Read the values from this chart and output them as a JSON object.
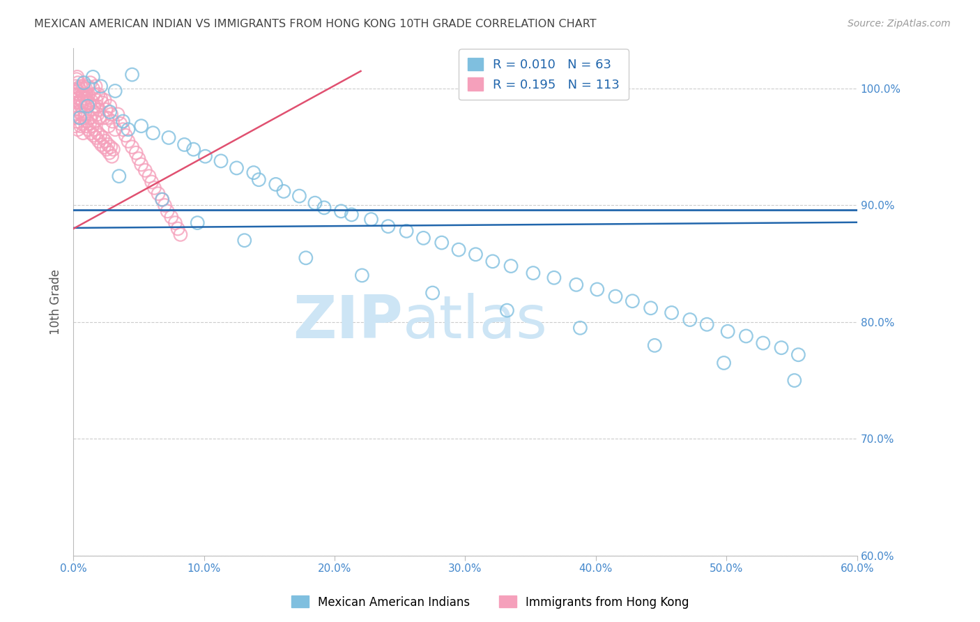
{
  "title": "MEXICAN AMERICAN INDIAN VS IMMIGRANTS FROM HONG KONG 10TH GRADE CORRELATION CHART",
  "source": "Source: ZipAtlas.com",
  "ylabel": "10th Grade",
  "xlim": [
    0.0,
    60.0
  ],
  "ylim": [
    60.0,
    103.5
  ],
  "yticks": [
    100.0,
    90.0,
    80.0,
    70.0,
    60.0
  ],
  "xticks": [
    0.0,
    10.0,
    20.0,
    30.0,
    40.0,
    50.0,
    60.0
  ],
  "blue_R": 0.01,
  "blue_N": 63,
  "pink_R": 0.195,
  "pink_N": 113,
  "blue_hline_y": 89.6,
  "blue_color": "#7fbfdf",
  "pink_color": "#f5a0bb",
  "blue_line_color": "#2166ac",
  "pink_line_color": "#e05070",
  "hline_color": "#2166ac",
  "title_color": "#444444",
  "tick_color": "#4488cc",
  "watermark_zip": "ZIP",
  "watermark_atlas": "atlas",
  "watermark_color": "#cde5f5",
  "legend_label_blue": "Mexican American Indians",
  "legend_label_pink": "Immigrants from Hong Kong",
  "blue_scatter_x": [
    0.8,
    1.5,
    2.1,
    3.2,
    4.5,
    0.5,
    1.1,
    2.8,
    3.8,
    5.2,
    6.1,
    7.3,
    8.5,
    9.2,
    10.1,
    11.3,
    12.5,
    13.8,
    14.2,
    15.5,
    16.1,
    17.3,
    18.5,
    19.2,
    20.5,
    21.3,
    22.8,
    24.1,
    25.5,
    26.8,
    28.2,
    29.5,
    30.8,
    32.1,
    33.5,
    35.2,
    36.8,
    38.5,
    40.1,
    41.5,
    42.8,
    44.2,
    45.8,
    47.2,
    48.5,
    50.1,
    51.5,
    52.8,
    54.2,
    55.5,
    3.5,
    6.8,
    9.5,
    13.1,
    17.8,
    22.1,
    27.5,
    33.2,
    38.8,
    44.5,
    49.8,
    55.2,
    4.2
  ],
  "blue_scatter_y": [
    100.5,
    101.0,
    100.2,
    99.8,
    101.2,
    97.5,
    98.5,
    98.0,
    97.2,
    96.8,
    96.2,
    95.8,
    95.2,
    94.8,
    94.2,
    93.8,
    93.2,
    92.8,
    92.2,
    91.8,
    91.2,
    90.8,
    90.2,
    89.8,
    89.5,
    89.2,
    88.8,
    88.2,
    87.8,
    87.2,
    86.8,
    86.2,
    85.8,
    85.2,
    84.8,
    84.2,
    83.8,
    83.2,
    82.8,
    82.2,
    81.8,
    81.2,
    80.8,
    80.2,
    79.8,
    79.2,
    78.8,
    78.2,
    77.8,
    77.2,
    92.5,
    90.5,
    88.5,
    87.0,
    85.5,
    84.0,
    82.5,
    81.0,
    79.5,
    78.0,
    76.5,
    75.0,
    96.5
  ],
  "pink_scatter_x": [
    0.05,
    0.08,
    0.1,
    0.12,
    0.15,
    0.18,
    0.2,
    0.22,
    0.25,
    0.28,
    0.3,
    0.35,
    0.38,
    0.4,
    0.45,
    0.48,
    0.5,
    0.55,
    0.58,
    0.6,
    0.65,
    0.7,
    0.72,
    0.75,
    0.78,
    0.8,
    0.85,
    0.88,
    0.9,
    0.95,
    1.0,
    1.05,
    1.1,
    1.15,
    1.2,
    1.25,
    1.3,
    1.35,
    1.4,
    1.45,
    1.5,
    1.55,
    1.6,
    1.65,
    1.7,
    1.75,
    1.8,
    1.85,
    1.9,
    1.95,
    2.0,
    2.1,
    2.2,
    2.3,
    2.4,
    2.5,
    2.6,
    2.7,
    2.8,
    2.9,
    3.0,
    3.2,
    3.4,
    3.6,
    3.8,
    4.0,
    4.2,
    4.5,
    4.8,
    5.0,
    5.2,
    5.5,
    5.8,
    6.0,
    6.2,
    6.5,
    6.8,
    7.0,
    7.2,
    7.5,
    7.8,
    8.0,
    8.2,
    0.15,
    0.25,
    0.35,
    0.45,
    0.55,
    0.65,
    0.75,
    0.85,
    0.95,
    1.05,
    1.15,
    1.25,
    1.35,
    1.45,
    1.55,
    1.65,
    1.75,
    1.85,
    1.95,
    2.05,
    2.15,
    2.25,
    2.35,
    2.45,
    2.55,
    2.65,
    2.75,
    2.85,
    2.95,
    3.05
  ],
  "pink_scatter_y": [
    97.5,
    98.2,
    99.0,
    98.5,
    97.8,
    100.2,
    99.5,
    98.8,
    100.8,
    99.8,
    101.0,
    100.5,
    99.2,
    98.0,
    100.0,
    99.5,
    98.8,
    100.2,
    99.0,
    98.5,
    97.8,
    99.5,
    100.2,
    98.8,
    99.5,
    100.0,
    99.2,
    98.5,
    97.8,
    100.0,
    99.5,
    98.8,
    100.2,
    99.5,
    98.8,
    97.5,
    100.5,
    99.0,
    98.2,
    97.8,
    100.0,
    99.5,
    98.5,
    97.2,
    100.2,
    99.0,
    98.5,
    97.8,
    99.5,
    98.2,
    97.5,
    99.2,
    98.8,
    97.5,
    99.0,
    98.2,
    97.5,
    96.8,
    98.5,
    97.8,
    97.2,
    96.5,
    97.8,
    97.0,
    96.5,
    96.0,
    95.5,
    95.0,
    94.5,
    94.0,
    93.5,
    93.0,
    92.5,
    92.0,
    91.5,
    91.0,
    90.5,
    90.0,
    89.5,
    89.0,
    88.5,
    88.0,
    87.5,
    96.8,
    97.2,
    96.5,
    97.5,
    96.8,
    97.0,
    96.2,
    97.5,
    96.8,
    97.2,
    96.5,
    97.0,
    96.2,
    96.8,
    96.0,
    96.5,
    95.8,
    96.2,
    95.5,
    96.0,
    95.2,
    95.8,
    95.0,
    95.5,
    94.8,
    95.2,
    94.5,
    95.0,
    94.2,
    94.8
  ],
  "pink_trend_x0": 0.0,
  "pink_trend_x1": 22.0,
  "pink_trend_y0": 88.0,
  "pink_trend_y1": 101.5
}
